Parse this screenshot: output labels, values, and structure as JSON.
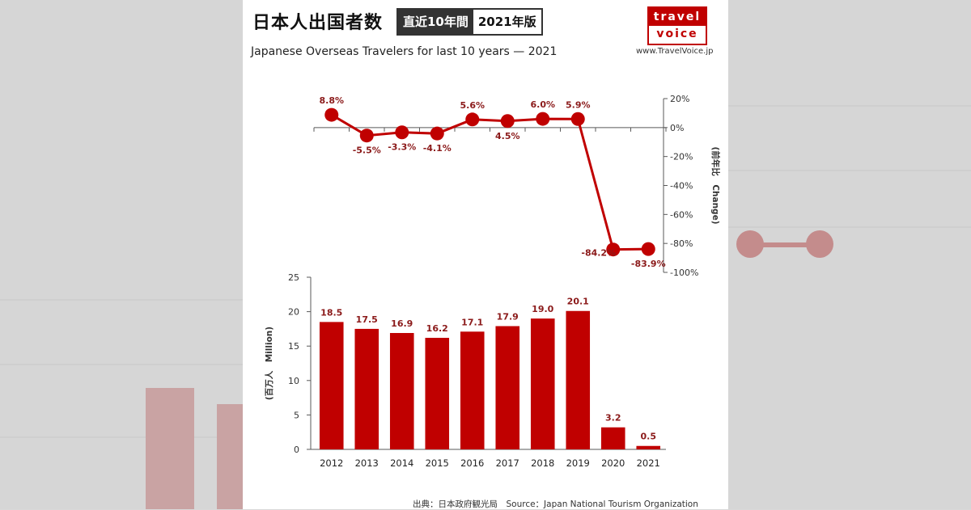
{
  "header": {
    "title_jp": "日本人出国者数",
    "badge_period": "直近10年間",
    "badge_edition": "2021年版",
    "subtitle_en": "Japanese Overseas Travelers for last 10 years — 2021"
  },
  "logo": {
    "line1": "travel",
    "line2": "voice",
    "site": "www.TravelVoice.jp"
  },
  "source": "出典：日本政府観光局　Source：Japan  National Tourism  Organization",
  "colors": {
    "accent": "#c00000",
    "series": "#c00000",
    "axis": "#595959",
    "text_data": "#8b1a1a"
  },
  "chart_data": [
    {
      "type": "line",
      "categories": [
        "2012",
        "2013",
        "2014",
        "2015",
        "2016",
        "2017",
        "2018",
        "2019",
        "2020",
        "2021"
      ],
      "values": [
        8.8,
        -5.5,
        -3.3,
        -4.1,
        5.6,
        4.5,
        6.0,
        5.9,
        -84.2,
        -83.9
      ],
      "data_labels": [
        "8.8%",
        "-5.5%",
        "-3.3%",
        "-4.1%",
        "5.6%",
        "4.5%",
        "6.0%",
        "5.9%",
        "-84.2%",
        "-83.9%"
      ],
      "ylim": [
        -100,
        20
      ],
      "y_ticks": [
        20,
        0,
        -20,
        -40,
        -60,
        -80,
        -100
      ],
      "y_tick_labels": [
        "20%",
        "0%",
        "-20%",
        "-40%",
        "-60%",
        "-80%",
        "-100%"
      ],
      "ylabel": "(前年比　Change)",
      "y_axis_side": "right",
      "grid": false
    },
    {
      "type": "bar",
      "categories": [
        "2012",
        "2013",
        "2014",
        "2015",
        "2016",
        "2017",
        "2018",
        "2019",
        "2020",
        "2021"
      ],
      "values": [
        18.5,
        17.5,
        16.9,
        16.2,
        17.1,
        17.9,
        19.0,
        20.1,
        3.2,
        0.5
      ],
      "data_labels": [
        "18.5",
        "17.5",
        "16.9",
        "16.2",
        "17.1",
        "17.9",
        "19.0",
        "20.1",
        "3.2",
        "0.5"
      ],
      "ylim": [
        0,
        25
      ],
      "y_ticks": [
        0,
        5,
        10,
        15,
        20,
        25
      ],
      "y_tick_labels": [
        "0",
        "5",
        "10",
        "15",
        "20",
        "25"
      ],
      "ylabel": "(百万人　Million)",
      "y_axis_side": "left",
      "grid": false
    }
  ]
}
